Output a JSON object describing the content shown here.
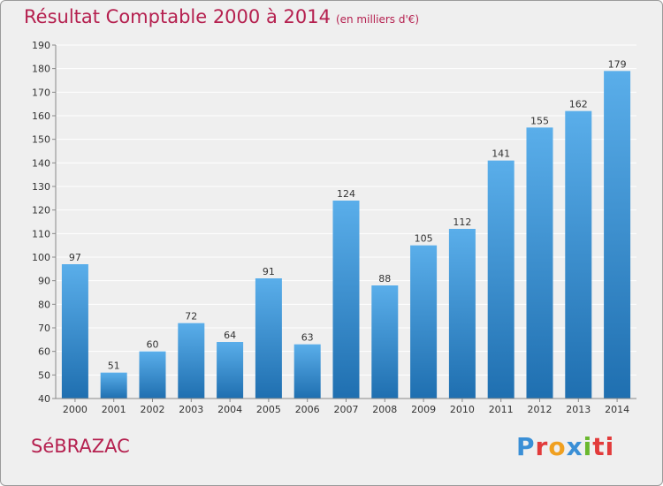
{
  "header": {
    "title": "Résultat Comptable 2000 à 2014",
    "unit": "(en milliers d'€)"
  },
  "footer": {
    "commune": "SéBRAZAC",
    "brand": "Proxiti",
    "brand_colors": [
      "#3a8fd6",
      "#e23b3b",
      "#f0a020",
      "#3a8fd6",
      "#6ab82e",
      "#e23b3b",
      "#e23b3b"
    ]
  },
  "colors": {
    "bar_top": "#5aaeea",
    "bar_bottom": "#1f6fb0",
    "title": "#b5204f",
    "grid": "#ffffff",
    "axis": "#888888"
  },
  "chart_data": {
    "type": "bar",
    "categories": [
      "2000",
      "2001",
      "2002",
      "2003",
      "2004",
      "2005",
      "2006",
      "2007",
      "2008",
      "2009",
      "2010",
      "2011",
      "2012",
      "2013",
      "2014"
    ],
    "values": [
      97,
      51,
      60,
      72,
      64,
      91,
      63,
      124,
      88,
      105,
      112,
      141,
      155,
      162,
      179
    ],
    "title": "Résultat Comptable 2000 à 2014",
    "subtitle": "(en milliers d'€)",
    "ylim": [
      40,
      190
    ],
    "yticks": [
      40,
      50,
      60,
      70,
      80,
      90,
      100,
      110,
      120,
      130,
      140,
      150,
      160,
      170,
      180,
      190
    ],
    "grid": true,
    "legend": "none"
  }
}
